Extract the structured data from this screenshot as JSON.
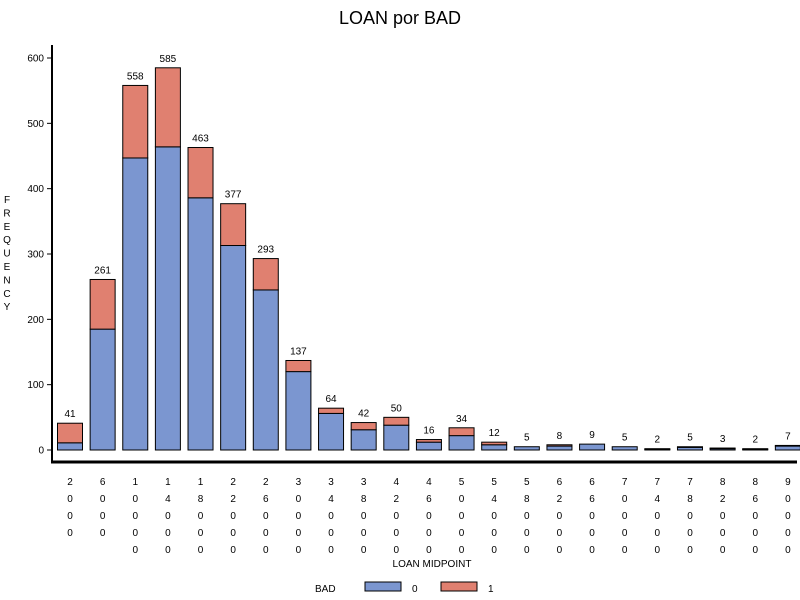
{
  "chart_data": {
    "type": "bar",
    "stacked": true,
    "title": "LOAN por BAD",
    "xlabel": "LOAN MIDPOINT",
    "ylabel": "FREQUENCY",
    "ylim": [
      0,
      600
    ],
    "yticks": [
      0,
      100,
      200,
      300,
      400,
      500,
      600
    ],
    "grid": false,
    "legend_position": "bottom",
    "legend_title": "BAD",
    "categories": [
      "2000",
      "6000",
      "10000",
      "14000",
      "18000",
      "22000",
      "26000",
      "30000",
      "34000",
      "38000",
      "42000",
      "46000",
      "50000",
      "54000",
      "58000",
      "62000",
      "66000",
      "70000",
      "74000",
      "78000",
      "82000",
      "86000",
      "90000"
    ],
    "series": [
      {
        "name": "0",
        "color": "#7b96d0",
        "values": [
          11,
          185,
          447,
          464,
          386,
          313,
          245,
          120,
          56,
          31,
          38,
          12,
          22,
          8,
          5,
          6,
          9,
          5,
          1,
          4,
          2,
          1,
          6
        ]
      },
      {
        "name": "1",
        "color": "#e08070",
        "values": [
          30,
          76,
          111,
          121,
          77,
          64,
          48,
          17,
          8,
          11,
          12,
          4,
          12,
          4,
          0,
          2,
          0,
          0,
          1,
          1,
          1,
          1,
          1
        ]
      }
    ],
    "totals": [
      41,
      261,
      558,
      585,
      463,
      377,
      293,
      137,
      64,
      42,
      50,
      16,
      34,
      12,
      5,
      8,
      9,
      5,
      2,
      5,
      3,
      2,
      7
    ]
  }
}
